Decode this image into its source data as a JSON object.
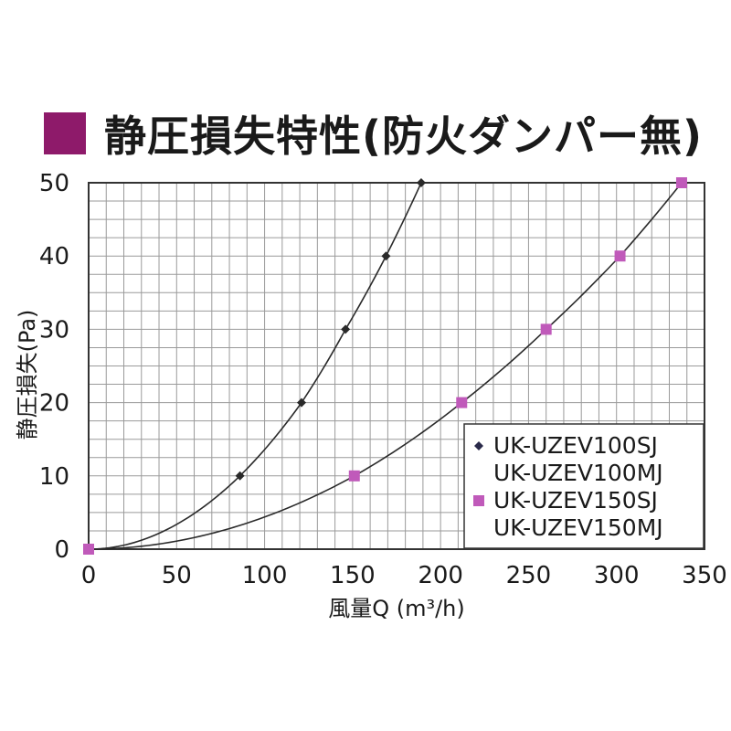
{
  "colors": {
    "accent": "#8e1a6a",
    "series1": "#2a2a4a",
    "series2": "#c05aba",
    "grid": "#9a9a9a",
    "frame": "#333333"
  },
  "title": "静圧損失特性(防火ダンパー無)",
  "chart_data": {
    "type": "line",
    "xlabel": "風量Q  (m³/h)",
    "ylabel": "静圧損失(Pa)",
    "xlim": [
      0,
      350
    ],
    "ylim": [
      0,
      50
    ],
    "xticks": [
      "0",
      "50",
      "100",
      "150",
      "200",
      "250",
      "300",
      "350"
    ],
    "yticks": [
      "0",
      "10",
      "20",
      "30",
      "40",
      "50"
    ],
    "grid": true,
    "legend_position": "lower-right",
    "series": [
      {
        "name": [
          "UK-UZEV100SJ",
          "UK-UZEV100MJ"
        ],
        "marker": "diamond",
        "x": [
          0,
          86,
          121,
          146,
          169,
          189
        ],
        "y": [
          0,
          10,
          20,
          30,
          40,
          50
        ]
      },
      {
        "name": [
          "UK-UZEV150SJ",
          "UK-UZEV150MJ"
        ],
        "marker": "square",
        "x": [
          0,
          151,
          212,
          260,
          302,
          337
        ],
        "y": [
          0,
          10,
          20,
          30,
          40,
          50
        ]
      }
    ]
  }
}
